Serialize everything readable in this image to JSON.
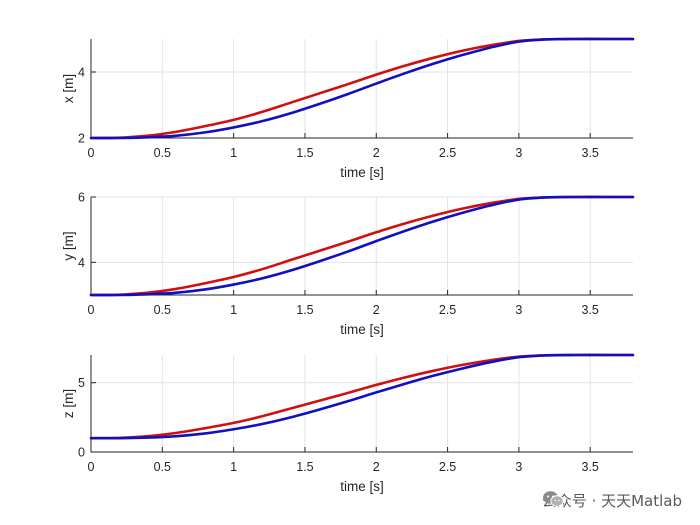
{
  "chart_data": [
    {
      "type": "line",
      "title": "",
      "xlabel": "time [s]",
      "ylabel": "x [m]",
      "xlim": [
        0,
        3.8
      ],
      "ylim": [
        2,
        5
      ],
      "xticks": [
        0,
        0.5,
        1,
        1.5,
        2,
        2.5,
        3,
        3.5
      ],
      "xtick_labels": [
        "0",
        "0.5",
        "1",
        "1.5",
        "2",
        "2.5",
        "3",
        "3.5"
      ],
      "yticks": [
        2,
        4
      ],
      "ytick_labels": [
        "2",
        "4"
      ],
      "grid": true,
      "series": [
        {
          "name": "red",
          "color": "#d01010",
          "x": [
            0,
            0.2,
            0.4,
            0.6,
            0.8,
            1.0,
            1.2,
            1.4,
            1.6,
            1.8,
            2.0,
            2.2,
            2.4,
            2.6,
            2.8,
            3.0,
            3.2,
            3.4,
            3.6,
            3.8
          ],
          "y": [
            2.0,
            2.01,
            2.07,
            2.19,
            2.36,
            2.55,
            2.79,
            3.07,
            3.35,
            3.63,
            3.92,
            4.19,
            4.43,
            4.64,
            4.81,
            4.94,
            4.99,
            5.0,
            5.0,
            5.0
          ]
        },
        {
          "name": "blue",
          "color": "#1010c0",
          "x": [
            0,
            0.2,
            0.4,
            0.6,
            0.8,
            1.0,
            1.2,
            1.4,
            1.6,
            1.8,
            2.0,
            2.2,
            2.4,
            2.6,
            2.8,
            3.0,
            3.2,
            3.4,
            3.6,
            3.8
          ],
          "y": [
            2.0,
            2.0,
            2.02,
            2.07,
            2.17,
            2.32,
            2.51,
            2.75,
            3.03,
            3.33,
            3.65,
            3.96,
            4.25,
            4.51,
            4.74,
            4.92,
            4.99,
            5.0,
            5.0,
            5.0
          ]
        }
      ]
    },
    {
      "type": "line",
      "title": "",
      "xlabel": "time [s]",
      "ylabel": "y [m]",
      "xlim": [
        0,
        3.8
      ],
      "ylim": [
        3,
        6
      ],
      "xticks": [
        0,
        0.5,
        1,
        1.5,
        2,
        2.5,
        3,
        3.5
      ],
      "xtick_labels": [
        "0",
        "0.5",
        "1",
        "1.5",
        "2",
        "2.5",
        "3",
        "3.5"
      ],
      "yticks": [
        4,
        6
      ],
      "ytick_labels": [
        "4",
        "6"
      ],
      "grid": true,
      "series": [
        {
          "name": "red",
          "color": "#d01010",
          "x": [
            0,
            0.2,
            0.4,
            0.6,
            0.8,
            1.0,
            1.2,
            1.4,
            1.6,
            1.8,
            2.0,
            2.2,
            2.4,
            2.6,
            2.8,
            3.0,
            3.2,
            3.4,
            3.6,
            3.8
          ],
          "y": [
            3.0,
            3.01,
            3.07,
            3.19,
            3.36,
            3.55,
            3.79,
            4.07,
            4.35,
            4.63,
            4.92,
            5.19,
            5.43,
            5.64,
            5.81,
            5.94,
            5.99,
            6.0,
            6.0,
            6.0
          ]
        },
        {
          "name": "blue",
          "color": "#1010c0",
          "x": [
            0,
            0.2,
            0.4,
            0.6,
            0.8,
            1.0,
            1.2,
            1.4,
            1.6,
            1.8,
            2.0,
            2.2,
            2.4,
            2.6,
            2.8,
            3.0,
            3.2,
            3.4,
            3.6,
            3.8
          ],
          "y": [
            3.0,
            3.0,
            3.02,
            3.07,
            3.17,
            3.32,
            3.51,
            3.75,
            4.03,
            4.33,
            4.65,
            4.96,
            5.25,
            5.51,
            5.74,
            5.92,
            5.99,
            6.0,
            6.0,
            6.0
          ]
        }
      ]
    },
    {
      "type": "line",
      "title": "",
      "xlabel": "time [s]",
      "ylabel": "z [m]",
      "xlim": [
        0,
        3.8
      ],
      "ylim": [
        0,
        7
      ],
      "xticks": [
        0,
        0.5,
        1,
        1.5,
        2,
        2.5,
        3,
        3.5
      ],
      "xtick_labels": [
        "0",
        "0.5",
        "1",
        "1.5",
        "2",
        "2.5",
        "3",
        "3.5"
      ],
      "yticks": [
        0,
        5
      ],
      "ytick_labels": [
        "0",
        "5"
      ],
      "grid": true,
      "series": [
        {
          "name": "red",
          "color": "#d01010",
          "x": [
            0,
            0.2,
            0.4,
            0.6,
            0.8,
            1.0,
            1.2,
            1.4,
            1.6,
            1.8,
            2.0,
            2.2,
            2.4,
            2.6,
            2.8,
            3.0,
            3.2,
            3.4,
            3.6,
            3.8
          ],
          "y": [
            1.0,
            1.02,
            1.14,
            1.38,
            1.72,
            2.1,
            2.58,
            3.14,
            3.7,
            4.26,
            4.84,
            5.38,
            5.86,
            6.28,
            6.62,
            6.88,
            6.98,
            7.0,
            7.0,
            7.0
          ]
        },
        {
          "name": "blue",
          "color": "#1010c0",
          "x": [
            0,
            0.2,
            0.4,
            0.6,
            0.8,
            1.0,
            1.2,
            1.4,
            1.6,
            1.8,
            2.0,
            2.2,
            2.4,
            2.6,
            2.8,
            3.0,
            3.2,
            3.4,
            3.6,
            3.8
          ],
          "y": [
            1.0,
            1.0,
            1.04,
            1.14,
            1.34,
            1.64,
            2.02,
            2.5,
            3.06,
            3.66,
            4.3,
            4.92,
            5.5,
            6.02,
            6.48,
            6.84,
            6.98,
            7.0,
            7.0,
            7.0
          ]
        }
      ]
    }
  ],
  "watermark": {
    "text": "公众号 · 天天Matlab",
    "icon": "wechat-icon"
  }
}
